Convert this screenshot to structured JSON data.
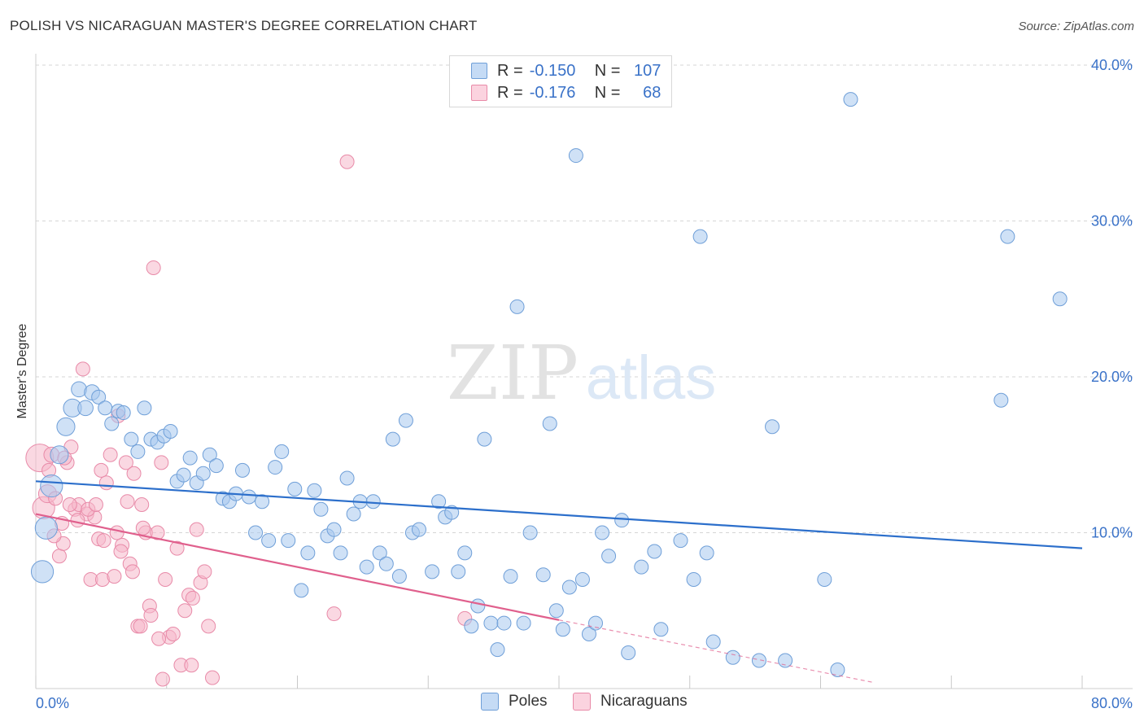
{
  "header": {
    "title": "POLISH VS NICARAGUAN MASTER'S DEGREE CORRELATION CHART",
    "source": "Source: ZipAtlas.com"
  },
  "watermark": {
    "zip": "ZIP",
    "atlas": "atlas"
  },
  "legend": {
    "rows": [
      {
        "r_label": "R =",
        "r_value": "-0.150",
        "n_label": "N =",
        "n_value": "107",
        "color": "#a8c8ef"
      },
      {
        "r_label": "R =",
        "r_value": "-0.176",
        "n_label": "N =",
        "n_value": "68",
        "color": "#f6b8cb"
      }
    ]
  },
  "bottom_legend": [
    {
      "label": "Poles",
      "color": "#a8c8ef"
    },
    {
      "label": "Nicaraguans",
      "color": "#f6b8cb"
    }
  ],
  "colors": {
    "blue_fill": "#a8c8ef",
    "blue_stroke": "#6f9fd8",
    "blue_line": "#2c6fcb",
    "pink_fill": "#f6b8cb",
    "pink_stroke": "#e88aa8",
    "pink_line": "#e0608d",
    "grid": "#d6d6d6",
    "tick_text": "#3a72c8"
  },
  "chart_data": {
    "type": "scatter",
    "title": "POLISH VS NICARAGUAN MASTER'S DEGREE CORRELATION CHART",
    "xlabel": "",
    "ylabel": "Master's Degree",
    "xlim": [
      0,
      80
    ],
    "ylim": [
      0,
      40
    ],
    "x_tick_labels": [
      "0.0%",
      "80.0%"
    ],
    "y_ticks": [
      10,
      20,
      30,
      40
    ],
    "y_tick_labels": [
      "10.0%",
      "20.0%",
      "30.0%",
      "40.0%"
    ],
    "grid": true,
    "legend_position": "top-center",
    "series": [
      {
        "name": "Poles",
        "r": -0.15,
        "n": 107,
        "trend": {
          "x0": 0,
          "y0": 13.3,
          "x1": 80,
          "y1": 9.0
        },
        "points": [
          [
            0.5,
            7.5,
            1.6
          ],
          [
            0.8,
            10.3,
            1.6
          ],
          [
            1.2,
            13.0,
            1.6
          ],
          [
            1.8,
            15.0,
            1.3
          ],
          [
            2.3,
            16.8,
            1.3
          ],
          [
            2.8,
            18.0,
            1.3
          ],
          [
            3.3,
            19.2,
            1.1
          ],
          [
            3.8,
            18.0,
            1.1
          ],
          [
            4.3,
            19.0,
            1.1
          ],
          [
            4.8,
            18.7,
            1.0
          ],
          [
            5.3,
            18.0,
            1.0
          ],
          [
            5.8,
            17.0,
            1.0
          ],
          [
            6.3,
            17.8,
            1.0
          ],
          [
            6.7,
            17.7,
            1.0
          ],
          [
            7.3,
            16.0,
            1.0
          ],
          [
            7.8,
            15.2,
            1.0
          ],
          [
            8.3,
            18.0,
            1.0
          ],
          [
            8.8,
            16.0,
            1.0
          ],
          [
            9.3,
            15.8,
            1.0
          ],
          [
            9.8,
            16.2,
            1.0
          ],
          [
            10.3,
            16.5,
            1.0
          ],
          [
            10.8,
            13.3,
            1.0
          ],
          [
            11.3,
            13.7,
            1.0
          ],
          [
            11.8,
            14.8,
            1.0
          ],
          [
            12.3,
            13.2,
            1.0
          ],
          [
            12.8,
            13.8,
            1.0
          ],
          [
            13.3,
            15.0,
            1.0
          ],
          [
            13.8,
            14.3,
            1.0
          ],
          [
            14.3,
            12.2,
            1.0
          ],
          [
            14.8,
            12.0,
            1.0
          ],
          [
            15.3,
            12.5,
            1.0
          ],
          [
            15.8,
            14.0,
            1.0
          ],
          [
            16.3,
            12.3,
            1.0
          ],
          [
            16.8,
            10.0,
            1.0
          ],
          [
            17.3,
            12.0,
            1.0
          ],
          [
            17.8,
            9.5,
            1.0
          ],
          [
            18.3,
            14.2,
            1.0
          ],
          [
            18.8,
            15.2,
            1.0
          ],
          [
            19.3,
            9.5,
            1.0
          ],
          [
            19.8,
            12.8,
            1.0
          ],
          [
            20.3,
            6.3,
            1.0
          ],
          [
            20.8,
            8.7,
            1.0
          ],
          [
            21.3,
            12.7,
            1.0
          ],
          [
            21.8,
            11.5,
            1.0
          ],
          [
            22.3,
            9.8,
            1.0
          ],
          [
            22.8,
            10.2,
            1.0
          ],
          [
            23.3,
            8.7,
            1.0
          ],
          [
            23.8,
            13.5,
            1.0
          ],
          [
            24.3,
            11.2,
            1.0
          ],
          [
            24.8,
            12.0,
            1.0
          ],
          [
            25.3,
            7.8,
            1.0
          ],
          [
            25.8,
            12.0,
            1.0
          ],
          [
            26.3,
            8.7,
            1.0
          ],
          [
            26.8,
            8.0,
            1.0
          ],
          [
            27.3,
            16.0,
            1.0
          ],
          [
            27.8,
            7.2,
            1.0
          ],
          [
            28.3,
            17.2,
            1.0
          ],
          [
            28.8,
            10.0,
            1.0
          ],
          [
            29.3,
            10.2,
            1.0
          ],
          [
            30.3,
            7.5,
            1.0
          ],
          [
            30.8,
            12.0,
            1.0
          ],
          [
            31.3,
            11.0,
            1.0
          ],
          [
            31.8,
            11.3,
            1.0
          ],
          [
            32.3,
            7.5,
            1.0
          ],
          [
            32.8,
            8.7,
            1.0
          ],
          [
            33.3,
            4.0,
            1.0
          ],
          [
            33.8,
            5.3,
            1.0
          ],
          [
            34.3,
            16.0,
            1.0
          ],
          [
            34.8,
            4.2,
            1.0
          ],
          [
            35.3,
            2.5,
            1.0
          ],
          [
            35.8,
            4.2,
            1.0
          ],
          [
            36.3,
            7.2,
            1.0
          ],
          [
            36.8,
            24.5,
            1.0
          ],
          [
            37.3,
            4.2,
            1.0
          ],
          [
            37.8,
            10.0,
            1.0
          ],
          [
            38.8,
            7.3,
            1.0
          ],
          [
            39.3,
            17.0,
            1.0
          ],
          [
            39.8,
            5.0,
            1.0
          ],
          [
            40.3,
            3.8,
            1.0
          ],
          [
            40.8,
            6.5,
            1.0
          ],
          [
            41.3,
            34.2,
            1.0
          ],
          [
            41.8,
            7.0,
            1.0
          ],
          [
            42.3,
            3.5,
            1.0
          ],
          [
            42.8,
            4.2,
            1.0
          ],
          [
            43.3,
            10.0,
            1.0
          ],
          [
            43.8,
            8.5,
            1.0
          ],
          [
            44.8,
            10.8,
            1.0
          ],
          [
            45.3,
            2.3,
            1.0
          ],
          [
            46.3,
            7.8,
            1.0
          ],
          [
            47.3,
            8.8,
            1.0
          ],
          [
            47.8,
            3.8,
            1.0
          ],
          [
            49.3,
            9.5,
            1.0
          ],
          [
            50.3,
            7.0,
            1.0
          ],
          [
            50.8,
            29.0,
            1.0
          ],
          [
            51.3,
            8.7,
            1.0
          ],
          [
            51.8,
            3.0,
            1.0
          ],
          [
            53.3,
            2.0,
            1.0
          ],
          [
            55.3,
            1.8,
            1.0
          ],
          [
            56.3,
            16.8,
            1.0
          ],
          [
            57.3,
            1.8,
            1.0
          ],
          [
            60.3,
            7.0,
            1.0
          ],
          [
            61.3,
            1.2,
            1.0
          ],
          [
            62.3,
            37.8,
            1.0
          ],
          [
            73.8,
            18.5,
            1.0
          ],
          [
            74.3,
            29.0,
            1.0
          ],
          [
            78.3,
            25.0,
            1.0
          ]
        ]
      },
      {
        "name": "Nicaraguans",
        "r": -0.176,
        "n": 68,
        "trend": {
          "x0": 0,
          "y0": 11.2,
          "x1": 40,
          "y1": 4.4
        },
        "trend_dashed_to": {
          "x": 64,
          "y": 0.4
        },
        "points": [
          [
            0.3,
            14.8,
            2.0
          ],
          [
            0.6,
            11.6,
            1.6
          ],
          [
            0.9,
            12.5,
            1.3
          ],
          [
            1.2,
            15.0,
            1.1
          ],
          [
            1.5,
            12.2,
            1.0
          ],
          [
            1.8,
            8.5,
            1.0
          ],
          [
            2.1,
            9.3,
            1.0
          ],
          [
            2.4,
            14.5,
            1.0
          ],
          [
            2.7,
            15.5,
            1.0
          ],
          [
            3.0,
            11.5,
            1.0
          ],
          [
            3.3,
            11.8,
            1.0
          ],
          [
            3.6,
            20.5,
            1.0
          ],
          [
            3.9,
            11.2,
            1.0
          ],
          [
            4.2,
            7.0,
            1.0
          ],
          [
            4.5,
            11.0,
            1.0
          ],
          [
            4.8,
            9.6,
            1.0
          ],
          [
            5.1,
            7.0,
            1.0
          ],
          [
            5.4,
            13.2,
            1.0
          ],
          [
            5.7,
            15.0,
            1.0
          ],
          [
            6.0,
            7.2,
            1.0
          ],
          [
            6.3,
            17.5,
            1.0
          ],
          [
            6.6,
            9.2,
            1.0
          ],
          [
            6.9,
            14.5,
            1.0
          ],
          [
            7.2,
            8.0,
            1.0
          ],
          [
            7.5,
            13.8,
            1.0
          ],
          [
            7.8,
            4.0,
            1.0
          ],
          [
            8.1,
            11.8,
            1.0
          ],
          [
            8.4,
            10.0,
            1.0
          ],
          [
            8.7,
            5.3,
            1.0
          ],
          [
            9.0,
            27.0,
            1.0
          ],
          [
            9.3,
            10.0,
            1.0
          ],
          [
            9.6,
            14.5,
            1.0
          ],
          [
            9.9,
            7.0,
            1.0
          ],
          [
            10.2,
            3.3,
            1.0
          ],
          [
            10.5,
            3.5,
            1.0
          ],
          [
            10.8,
            9.0,
            1.0
          ],
          [
            11.1,
            1.5,
            1.0
          ],
          [
            11.4,
            5.0,
            1.0
          ],
          [
            11.7,
            6.0,
            1.0
          ],
          [
            12.0,
            5.8,
            1.0
          ],
          [
            12.3,
            10.2,
            1.0
          ],
          [
            12.6,
            6.8,
            1.0
          ],
          [
            12.9,
            7.5,
            1.0
          ],
          [
            13.2,
            4.0,
            1.0
          ],
          [
            13.5,
            0.7,
            1.0
          ],
          [
            22.8,
            4.8,
            1.0
          ],
          [
            23.8,
            33.8,
            1.0
          ],
          [
            4.0,
            11.5,
            1.0
          ],
          [
            4.6,
            11.8,
            1.0
          ],
          [
            5.2,
            9.5,
            1.0
          ],
          [
            7.0,
            12.0,
            1.0
          ],
          [
            8.0,
            4.0,
            1.0
          ],
          [
            8.8,
            4.7,
            1.0
          ],
          [
            9.4,
            3.2,
            1.0
          ],
          [
            2.6,
            11.8,
            1.0
          ],
          [
            3.2,
            10.8,
            1.0
          ],
          [
            6.2,
            10.0,
            1.0
          ],
          [
            7.4,
            7.5,
            1.0
          ],
          [
            1.4,
            9.8,
            1.0
          ],
          [
            1.0,
            14.0,
            1.0
          ],
          [
            2.0,
            10.6,
            1.0
          ],
          [
            5.0,
            14.0,
            1.0
          ],
          [
            6.5,
            8.8,
            1.0
          ],
          [
            8.2,
            10.3,
            1.0
          ],
          [
            9.7,
            0.6,
            1.0
          ],
          [
            11.9,
            1.5,
            1.0
          ],
          [
            32.8,
            4.5,
            1.0
          ],
          [
            2.2,
            14.8,
            1.0
          ]
        ]
      }
    ]
  }
}
